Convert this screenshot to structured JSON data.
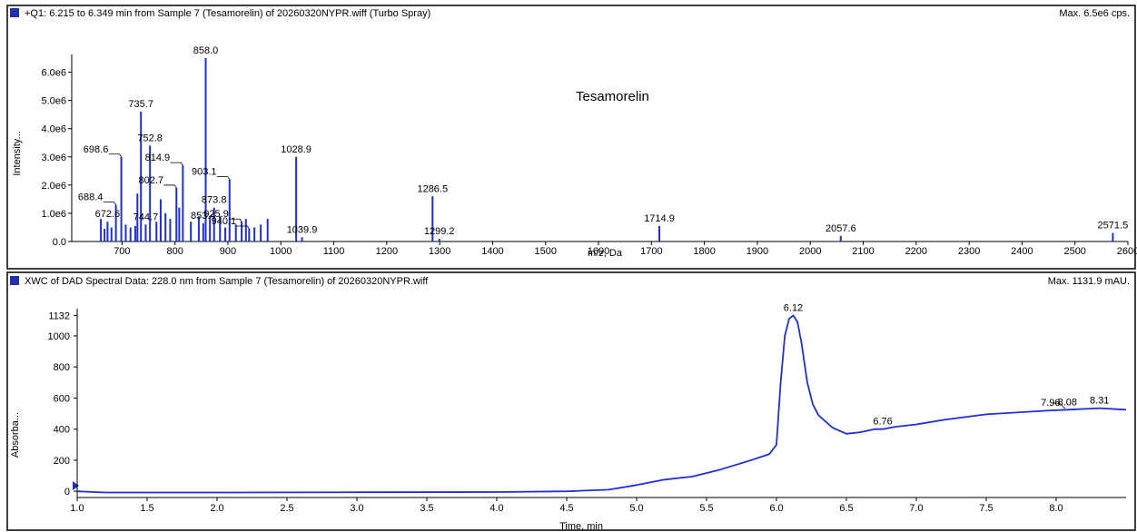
{
  "colors": {
    "trace": "#1f2fd6",
    "square": "#1f2fb0",
    "axis": "#000000",
    "frame": "#000000"
  },
  "chart_data": [
    {
      "type": "line",
      "plot_style": "stick-spectrum",
      "header": "+Q1: 6.215 to 6.349 min from Sample 7 (Tesamorelin) of 20260320NYPR.wiff (Turbo Spray)",
      "max_label": "Max. 6.5e6 cps.",
      "annotation": "Tesamorelin",
      "xlabel": "m/z, Da",
      "ylabel": "Intensity...",
      "xlim": [
        605,
        2600
      ],
      "ylim": [
        0,
        6500000
      ],
      "x_ticks": [
        700,
        800,
        900,
        1000,
        1100,
        1200,
        1300,
        1400,
        1500,
        1600,
        1700,
        1800,
        1900,
        2000,
        2100,
        2200,
        2300,
        2400,
        2500,
        2600
      ],
      "y_ticks": [
        {
          "v": 0,
          "label": "0.0"
        },
        {
          "v": 1000000,
          "label": "1.0e6"
        },
        {
          "v": 2000000,
          "label": "2.0e6"
        },
        {
          "v": 3000000,
          "label": "3.0e6"
        },
        {
          "v": 4000000,
          "label": "4.0e6"
        },
        {
          "v": 5000000,
          "label": "5.0e6"
        },
        {
          "v": 6000000,
          "label": "6.0e6"
        }
      ],
      "peaks": [
        {
          "x": 858.0,
          "y": 6500000,
          "label": "858.0"
        },
        {
          "x": 735.7,
          "y": 4600000,
          "label": "735.7"
        },
        {
          "x": 752.8,
          "y": 3400000,
          "label": "752.8"
        },
        {
          "x": 698.6,
          "y": 3000000,
          "label": "698.6"
        },
        {
          "x": 814.9,
          "y": 2700000,
          "label": "814.9"
        },
        {
          "x": 903.1,
          "y": 2200000,
          "label": "903.1"
        },
        {
          "x": 1028.9,
          "y": 3000000,
          "label": "1028.9"
        },
        {
          "x": 802.7,
          "y": 1900000,
          "label": "802.7"
        },
        {
          "x": 688.4,
          "y": 1300000,
          "label": "688.4"
        },
        {
          "x": 873.8,
          "y": 1200000,
          "label": "873.8"
        },
        {
          "x": 925.9,
          "y": 700000,
          "label": "925.9"
        },
        {
          "x": 853.4,
          "y": 650000,
          "label": "853.4"
        },
        {
          "x": 940.1,
          "y": 450000,
          "label": "940.1"
        },
        {
          "x": 672.6,
          "y": 700000,
          "label": "672.6"
        },
        {
          "x": 744.7,
          "y": 600000,
          "label": "744.7"
        },
        {
          "x": 1039.9,
          "y": 150000,
          "label": "1039.9"
        },
        {
          "x": 1286.5,
          "y": 1600000,
          "label": "1286.5"
        },
        {
          "x": 1299.2,
          "y": 100000,
          "label": "1299.2"
        },
        {
          "x": 1714.9,
          "y": 550000,
          "label": "1714.9"
        },
        {
          "x": 2057.6,
          "y": 200000,
          "label": "2057.6"
        },
        {
          "x": 2571.5,
          "y": 300000,
          "label": "2571.5"
        },
        {
          "x": 660,
          "y": 800000
        },
        {
          "x": 667,
          "y": 450000
        },
        {
          "x": 680,
          "y": 500000
        },
        {
          "x": 707,
          "y": 600000
        },
        {
          "x": 716,
          "y": 500000
        },
        {
          "x": 725,
          "y": 550000
        },
        {
          "x": 729,
          "y": 1700000
        },
        {
          "x": 765,
          "y": 700000
        },
        {
          "x": 773,
          "y": 1500000
        },
        {
          "x": 782,
          "y": 1000000
        },
        {
          "x": 791,
          "y": 800000
        },
        {
          "x": 808,
          "y": 1200000
        },
        {
          "x": 830,
          "y": 700000
        },
        {
          "x": 845,
          "y": 900000
        },
        {
          "x": 866,
          "y": 900000
        },
        {
          "x": 885,
          "y": 900000
        },
        {
          "x": 895,
          "y": 500000
        },
        {
          "x": 915,
          "y": 600000
        },
        {
          "x": 934,
          "y": 800000
        },
        {
          "x": 950,
          "y": 500000
        },
        {
          "x": 962,
          "y": 600000
        },
        {
          "x": 975,
          "y": 800000
        }
      ]
    },
    {
      "type": "line",
      "header": "XWC of DAD Spectral Data: 228.0 nm from Sample 7 (Tesamorelin) of 20260320NYPR.wiff",
      "max_label": "Max. 1131.9 mAU.",
      "xlabel": "Time, min",
      "ylabel": "Absorba...",
      "xlim": [
        1.0,
        8.5
      ],
      "ylim": [
        -40,
        1140
      ],
      "x_ticks": [
        1.0,
        1.5,
        2.0,
        2.5,
        3.0,
        3.5,
        4.0,
        4.5,
        5.0,
        5.5,
        6.0,
        6.5,
        7.0,
        7.5,
        8.0
      ],
      "x_tick_labels": [
        "1.0",
        "1.5",
        "2.0",
        "2.5",
        "3.0",
        "3.5",
        "4.0",
        "4.5",
        "5.0",
        "5.5",
        "6.0",
        "6.5",
        "7.0",
        "7.5",
        "8.0"
      ],
      "y_ticks": [
        0,
        200,
        400,
        600,
        800,
        1000,
        1132
      ],
      "y_tick_labels": [
        "0",
        "200",
        "400",
        "600",
        "800",
        "1000",
        "1132"
      ],
      "x": [
        1.0,
        1.2,
        2.0,
        3.0,
        4.0,
        4.5,
        4.8,
        5.0,
        5.2,
        5.4,
        5.6,
        5.8,
        5.95,
        6.0,
        6.03,
        6.06,
        6.09,
        6.12,
        6.15,
        6.18,
        6.22,
        6.26,
        6.3,
        6.4,
        6.5,
        6.6,
        6.7,
        6.76,
        6.85,
        7.0,
        7.2,
        7.5,
        7.96,
        8.08,
        8.31,
        8.5
      ],
      "y": [
        0,
        -8,
        -8,
        -6,
        -5,
        0,
        10,
        40,
        75,
        95,
        140,
        195,
        240,
        300,
        700,
        1000,
        1110,
        1132,
        1090,
        950,
        700,
        560,
        490,
        410,
        370,
        380,
        400,
        400,
        415,
        430,
        460,
        495,
        520,
        525,
        535,
        525
      ],
      "peaks": [
        {
          "x": 6.12,
          "y": 1132,
          "label": "6.12"
        },
        {
          "x": 6.76,
          "y": 400,
          "label": "6.76"
        },
        {
          "x": 7.96,
          "y": 520,
          "label": "7.96"
        },
        {
          "x": 8.08,
          "y": 525,
          "label": "8.08"
        },
        {
          "x": 8.31,
          "y": 535,
          "label": "8.31"
        }
      ]
    }
  ]
}
